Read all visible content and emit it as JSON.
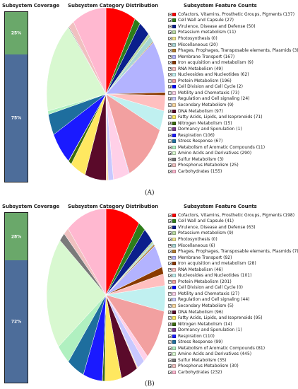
{
  "headers": {
    "coverage": "Subsystem Coverage",
    "distribution": "Subsystem Category Distribution",
    "counts": "Subsystem Feature Counts"
  },
  "chart_data": [
    {
      "type": "pie",
      "caption": "(A)",
      "coverage": {
        "top_label": "25%",
        "bottom_label": "75%",
        "top_fraction": 0.25
      },
      "categories": [
        "Cofactors, Vitamins, Prosthetic Groups, Pigments",
        "Cell Wall and Capsule",
        "Virulence, Disease and Defense",
        "Potassium metabolism",
        "Photosynthesis",
        "Miscellaneous",
        "Phages, Prophages, Transposable elements, Plasmids",
        "Membrane Transport",
        "Iron acquisition and metabolism",
        "RNA Metabolism",
        "Nucleosides and Nucleotides",
        "Protein Metabolism",
        "Cell Division and Cell Cycle",
        "Motility and Chemotaxis",
        "Regulation and Cell signaling",
        "Secondary Metabolism",
        "DNA Metabolism",
        "Fatty Acids, Lipids, and Isoprenoids",
        "Nitrogen Metabolism",
        "Dormancy and Sporulation",
        "Respiration",
        "Stress Response",
        "Metabolism of Aromatic Compounds",
        "Amino Acids and Derivatives",
        "Sulfur Metabolism",
        "Phosphorus Metabolism",
        "Carbohydrates"
      ],
      "values": [
        137,
        27,
        50,
        11,
        0,
        20,
        3,
        167,
        9,
        49,
        62,
        196,
        2,
        73,
        24,
        9,
        97,
        71,
        15,
        1,
        106,
        67,
        11,
        290,
        3,
        25,
        155
      ],
      "labels": [
        "Cofactors, Vitamins, Prosthetic Groups, Pigments (137)",
        "Cell Wall and Capsule (27)",
        "Virulence, Disease and Defense (50)",
        "Potassium metabolism (11)",
        "Photosynthesis (0)",
        "Miscellaneous (20)",
        "Phages, Prophages, Transposable elements, Plasmids (3)",
        "Membrane Transport (167)",
        "Iron acquisition and metabolism (9)",
        "RNA Metabolism (49)",
        "Nucleosides and Nucleotides (62)",
        "Protein Metabolism (196)",
        "Cell Division and Cell Cycle (2)",
        "Motility and Chemotaxis (73)",
        "Regulation and Cell signaling (24)",
        "Secondary Metabolism (9)",
        "DNA Metabolism (97)",
        "Fatty Acids, Lipids, and Isoprenoids (71)",
        "Nitrogen Metabolism (15)",
        "Dormancy and Sporulation (1)",
        "Respiration (106)",
        "Stress Response (67)",
        "Metabolism of Aromatic Compounds (11)",
        "Amino Acids and Derivatives (290)",
        "Sulfur Metabolism (3)",
        "Phosphorus Metabolism (25)",
        "Carbohydrates (155)"
      ],
      "colors": [
        "#ff0000",
        "#2e7d1a",
        "#0b1f8c",
        "#b8d9a0",
        "#f0e68c",
        "#a8d5d5",
        "#b07a32",
        "#b3b3ff",
        "#8a3a00",
        "#ffbfbf",
        "#c0f0f0",
        "#f2a0a0",
        "#0000ff",
        "#ffd0e8",
        "#c8c8ff",
        "#ffd8a0",
        "#5a0a2a",
        "#ffe860",
        "#3a6a0a",
        "#7a3a8a",
        "#1a1aff",
        "#1e6e9e",
        "#b0f0c0",
        "#d8f8d0",
        "#7a7a7a",
        "#f0c0c0",
        "#ffb8d0"
      ]
    },
    {
      "type": "pie",
      "caption": "(B)",
      "coverage": {
        "top_label": "28%",
        "bottom_label": "72%",
        "top_fraction": 0.28
      },
      "categories": [
        "Cofactors, Vitamins, Prosthetic Groups, Pigments",
        "Cell Wall and Capsule",
        "Virulence, Disease and Defense",
        "Potassium metabolism",
        "Photosynthesis",
        "Miscellaneous",
        "Phages, Prophages, Transposable elements, Plasmids",
        "Membrane Transport",
        "Iron acquisition and metabolism",
        "RNA Metabolism",
        "Nucleosides and Nucleotides",
        "Protein Metabolism",
        "Cell Division and Cell Cycle",
        "Motility and Chemotaxis",
        "Regulation and Cell signaling",
        "Secondary Metabolism",
        "DNA Metabolism",
        "Fatty Acids, Lipids, and Isoprenoids",
        "Nitrogen Metabolism",
        "Dormancy and Sporulation",
        "Respiration",
        "Stress Response",
        "Metabolism of Aromatic Compounds",
        "Amino Acids and Derivatives",
        "Sulfur Metabolism",
        "Phosphorus Metabolism",
        "Carbohydrates"
      ],
      "values": [
        198,
        41,
        63,
        9,
        0,
        6,
        7,
        92,
        28,
        46,
        101,
        201,
        0,
        27,
        44,
        5,
        96,
        95,
        14,
        1,
        110,
        99,
        81,
        445,
        35,
        30,
        232
      ],
      "labels": [
        "Cofactors, Vitamins, Prosthetic Groups, Pigments (198)",
        "Cell Wall and Capsule (41)",
        "Virulence, Disease and Defense (63)",
        "Potassium metabolism (9)",
        "Photosynthesis (0)",
        "Miscellaneous (6)",
        "Phages, Prophages, Transposable elements, Plasmids (7)",
        "Membrane Transport (92)",
        "Iron acquisition and metabolism (28)",
        "RNA Metabolism (46)",
        "Nucleosides and Nucleotides (101)",
        "Protein Metabolism (201)",
        "Cell Division and Cell Cycle (0)",
        "Motility and Chemotaxis (27)",
        "Regulation and Cell signaling (44)",
        "Secondary Metabolism (5)",
        "DNA Metabolism (96)",
        "Fatty Acids, Lipids, and Isoprenoids (95)",
        "Nitrogen Metabolism (14)",
        "Dormancy and Sporulation (1)",
        "Respiration (110)",
        "Stress Response (99)",
        "Metabolism of Aromatic Compounds (81)",
        "Amino Acids and Derivatives (445)",
        "Sulfur Metabolism (35)",
        "Phosphorus Metabolism (30)",
        "Carbohydrates (232)"
      ],
      "colors": [
        "#ff0000",
        "#2e7d1a",
        "#0b1f8c",
        "#b8d9a0",
        "#f0e68c",
        "#a8d5d5",
        "#b07a32",
        "#b3b3ff",
        "#8a3a00",
        "#ffbfbf",
        "#c0f0f0",
        "#f2a0a0",
        "#0000ff",
        "#ffd0e8",
        "#c8c8ff",
        "#ffd8a0",
        "#5a0a2a",
        "#ffe860",
        "#3a6a0a",
        "#7a3a8a",
        "#1a1aff",
        "#1e6e9e",
        "#b0f0c0",
        "#d8f8d0",
        "#7a7a7a",
        "#f0c0c0",
        "#ffb8d0"
      ]
    }
  ]
}
